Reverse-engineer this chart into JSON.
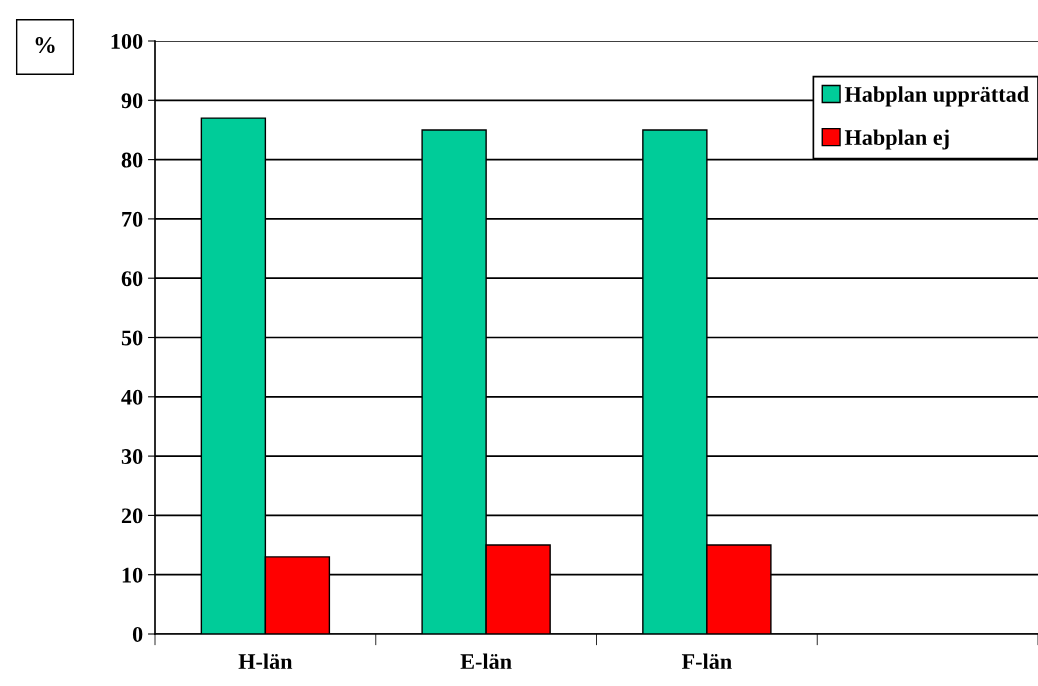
{
  "chart_data": {
    "type": "bar",
    "ylabel": "%",
    "categories": [
      "H-län",
      "E-län",
      "F-län",
      null
    ],
    "series": [
      {
        "name": "Habplan upprättad",
        "color": "#00cc99",
        "values": [
          87,
          85,
          85,
          null
        ]
      },
      {
        "name": "Habplan ej",
        "color": "#ff0000",
        "values": [
          13,
          15,
          15,
          null
        ]
      }
    ],
    "ylim": [
      0,
      100
    ],
    "yticks": [
      0,
      10,
      20,
      30,
      40,
      50,
      60,
      70,
      80,
      90,
      100
    ],
    "grid": "y",
    "legend": "top right"
  }
}
